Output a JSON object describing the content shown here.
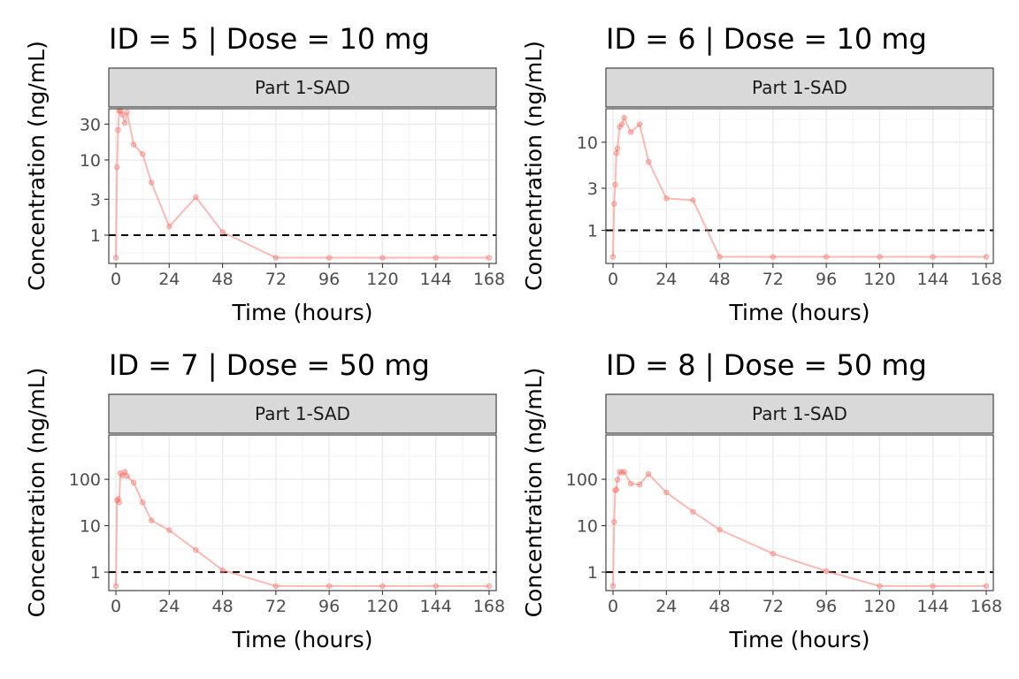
{
  "chart_data": [
    {
      "type": "line",
      "title": "ID = 5 | Dose = 10 mg",
      "strip": "Part 1-SAD",
      "xlabel": "Time (hours)",
      "ylabel": "Concentration (ng/mL)",
      "xlim": [
        -3.2,
        171.2
      ],
      "ylim": [
        0.42,
        48
      ],
      "yscale": "log",
      "xticks": [
        0,
        24,
        48,
        72,
        96,
        120,
        144,
        168
      ],
      "xtick_labels": [
        "0",
        "24",
        "48",
        "72",
        "96",
        "120",
        "144",
        "168"
      ],
      "yticks": [
        1,
        3,
        10,
        30
      ],
      "ytick_labels": [
        "1",
        "3",
        "10",
        "30"
      ],
      "reference_line": 1,
      "grid": true,
      "series": [
        {
          "color": "#F8766D",
          "x": [
            0,
            0.5,
            1,
            1.5,
            2,
            3,
            4,
            5,
            8,
            12,
            16,
            24,
            36,
            48,
            72,
            96,
            120,
            144,
            168
          ],
          "y": [
            0.5,
            8,
            25,
            45,
            45,
            40,
            31,
            43,
            16,
            12,
            5,
            1.3,
            3.2,
            1.1,
            0.5,
            0.5,
            0.5,
            0.5,
            0.5
          ]
        }
      ]
    },
    {
      "type": "line",
      "title": "ID = 6 | Dose = 10 mg",
      "strip": "Part 1-SAD",
      "xlabel": "Time (hours)",
      "ylabel": "Concentration (ng/mL)",
      "xlim": [
        -3.2,
        171.2
      ],
      "ylim": [
        0.42,
        24
      ],
      "yscale": "log",
      "xticks": [
        0,
        24,
        48,
        72,
        96,
        120,
        144,
        168
      ],
      "xtick_labels": [
        "0",
        "24",
        "48",
        "72",
        "96",
        "120",
        "144",
        "168"
      ],
      "yticks": [
        1,
        3,
        10
      ],
      "ytick_labels": [
        "1",
        "3",
        "10"
      ],
      "reference_line": 1,
      "grid": true,
      "series": [
        {
          "color": "#F8766D",
          "x": [
            0,
            0.5,
            1,
            1.5,
            2,
            3,
            4,
            5,
            8,
            12,
            16,
            24,
            36,
            48,
            72,
            96,
            120,
            144,
            168
          ],
          "y": [
            0.5,
            2,
            3.3,
            7.5,
            8.5,
            15,
            16,
            19,
            13,
            16,
            6,
            2.3,
            2.2,
            0.5,
            0.5,
            0.5,
            0.5,
            0.5,
            0.5
          ]
        }
      ]
    },
    {
      "type": "line",
      "title": "ID = 7 | Dose = 50 mg",
      "strip": "Part 1-SAD",
      "xlabel": "Time (hours)",
      "ylabel": "Concentration (ng/mL)",
      "xlim": [
        -3.2,
        171.2
      ],
      "ylim": [
        0.4,
        900
      ],
      "yscale": "log",
      "xticks": [
        0,
        24,
        48,
        72,
        96,
        120,
        144,
        168
      ],
      "xtick_labels": [
        "0",
        "24",
        "48",
        "72",
        "96",
        "120",
        "144",
        "168"
      ],
      "yticks": [
        1,
        10,
        100
      ],
      "ytick_labels": [
        "1",
        "10",
        "100"
      ],
      "reference_line": 1,
      "grid": true,
      "series": [
        {
          "color": "#F8766D",
          "x": [
            0,
            0.5,
            1,
            1.5,
            2,
            3,
            4,
            5,
            8,
            12,
            16,
            24,
            36,
            48,
            72,
            96,
            120,
            144,
            168
          ],
          "y": [
            0.5,
            35,
            38,
            32,
            135,
            120,
            145,
            118,
            85,
            32,
            13,
            8,
            3,
            1.1,
            0.5,
            0.5,
            0.5,
            0.5,
            0.5
          ]
        }
      ]
    },
    {
      "type": "line",
      "title": "ID = 8 | Dose = 50 mg",
      "strip": "Part 1-SAD",
      "xlabel": "Time (hours)",
      "ylabel": "Concentration (ng/mL)",
      "xlim": [
        -3.2,
        171.2
      ],
      "ylim": [
        0.4,
        900
      ],
      "yscale": "log",
      "xticks": [
        0,
        24,
        48,
        72,
        96,
        120,
        144,
        168
      ],
      "xtick_labels": [
        "0",
        "24",
        "48",
        "72",
        "96",
        "120",
        "144",
        "168"
      ],
      "yticks": [
        1,
        10,
        100
      ],
      "ytick_labels": [
        "1",
        "10",
        "100"
      ],
      "reference_line": 1,
      "grid": true,
      "series": [
        {
          "color": "#F8766D",
          "x": [
            0,
            0.5,
            1,
            1.5,
            2,
            3,
            4,
            5,
            8,
            12,
            16,
            24,
            36,
            48,
            72,
            96,
            120,
            144,
            168
          ],
          "y": [
            0.5,
            12,
            58,
            60,
            98,
            145,
            140,
            145,
            80,
            77,
            130,
            52,
            20,
            8.2,
            2.5,
            1.05,
            0.5,
            0.5,
            0.5
          ]
        }
      ]
    }
  ]
}
